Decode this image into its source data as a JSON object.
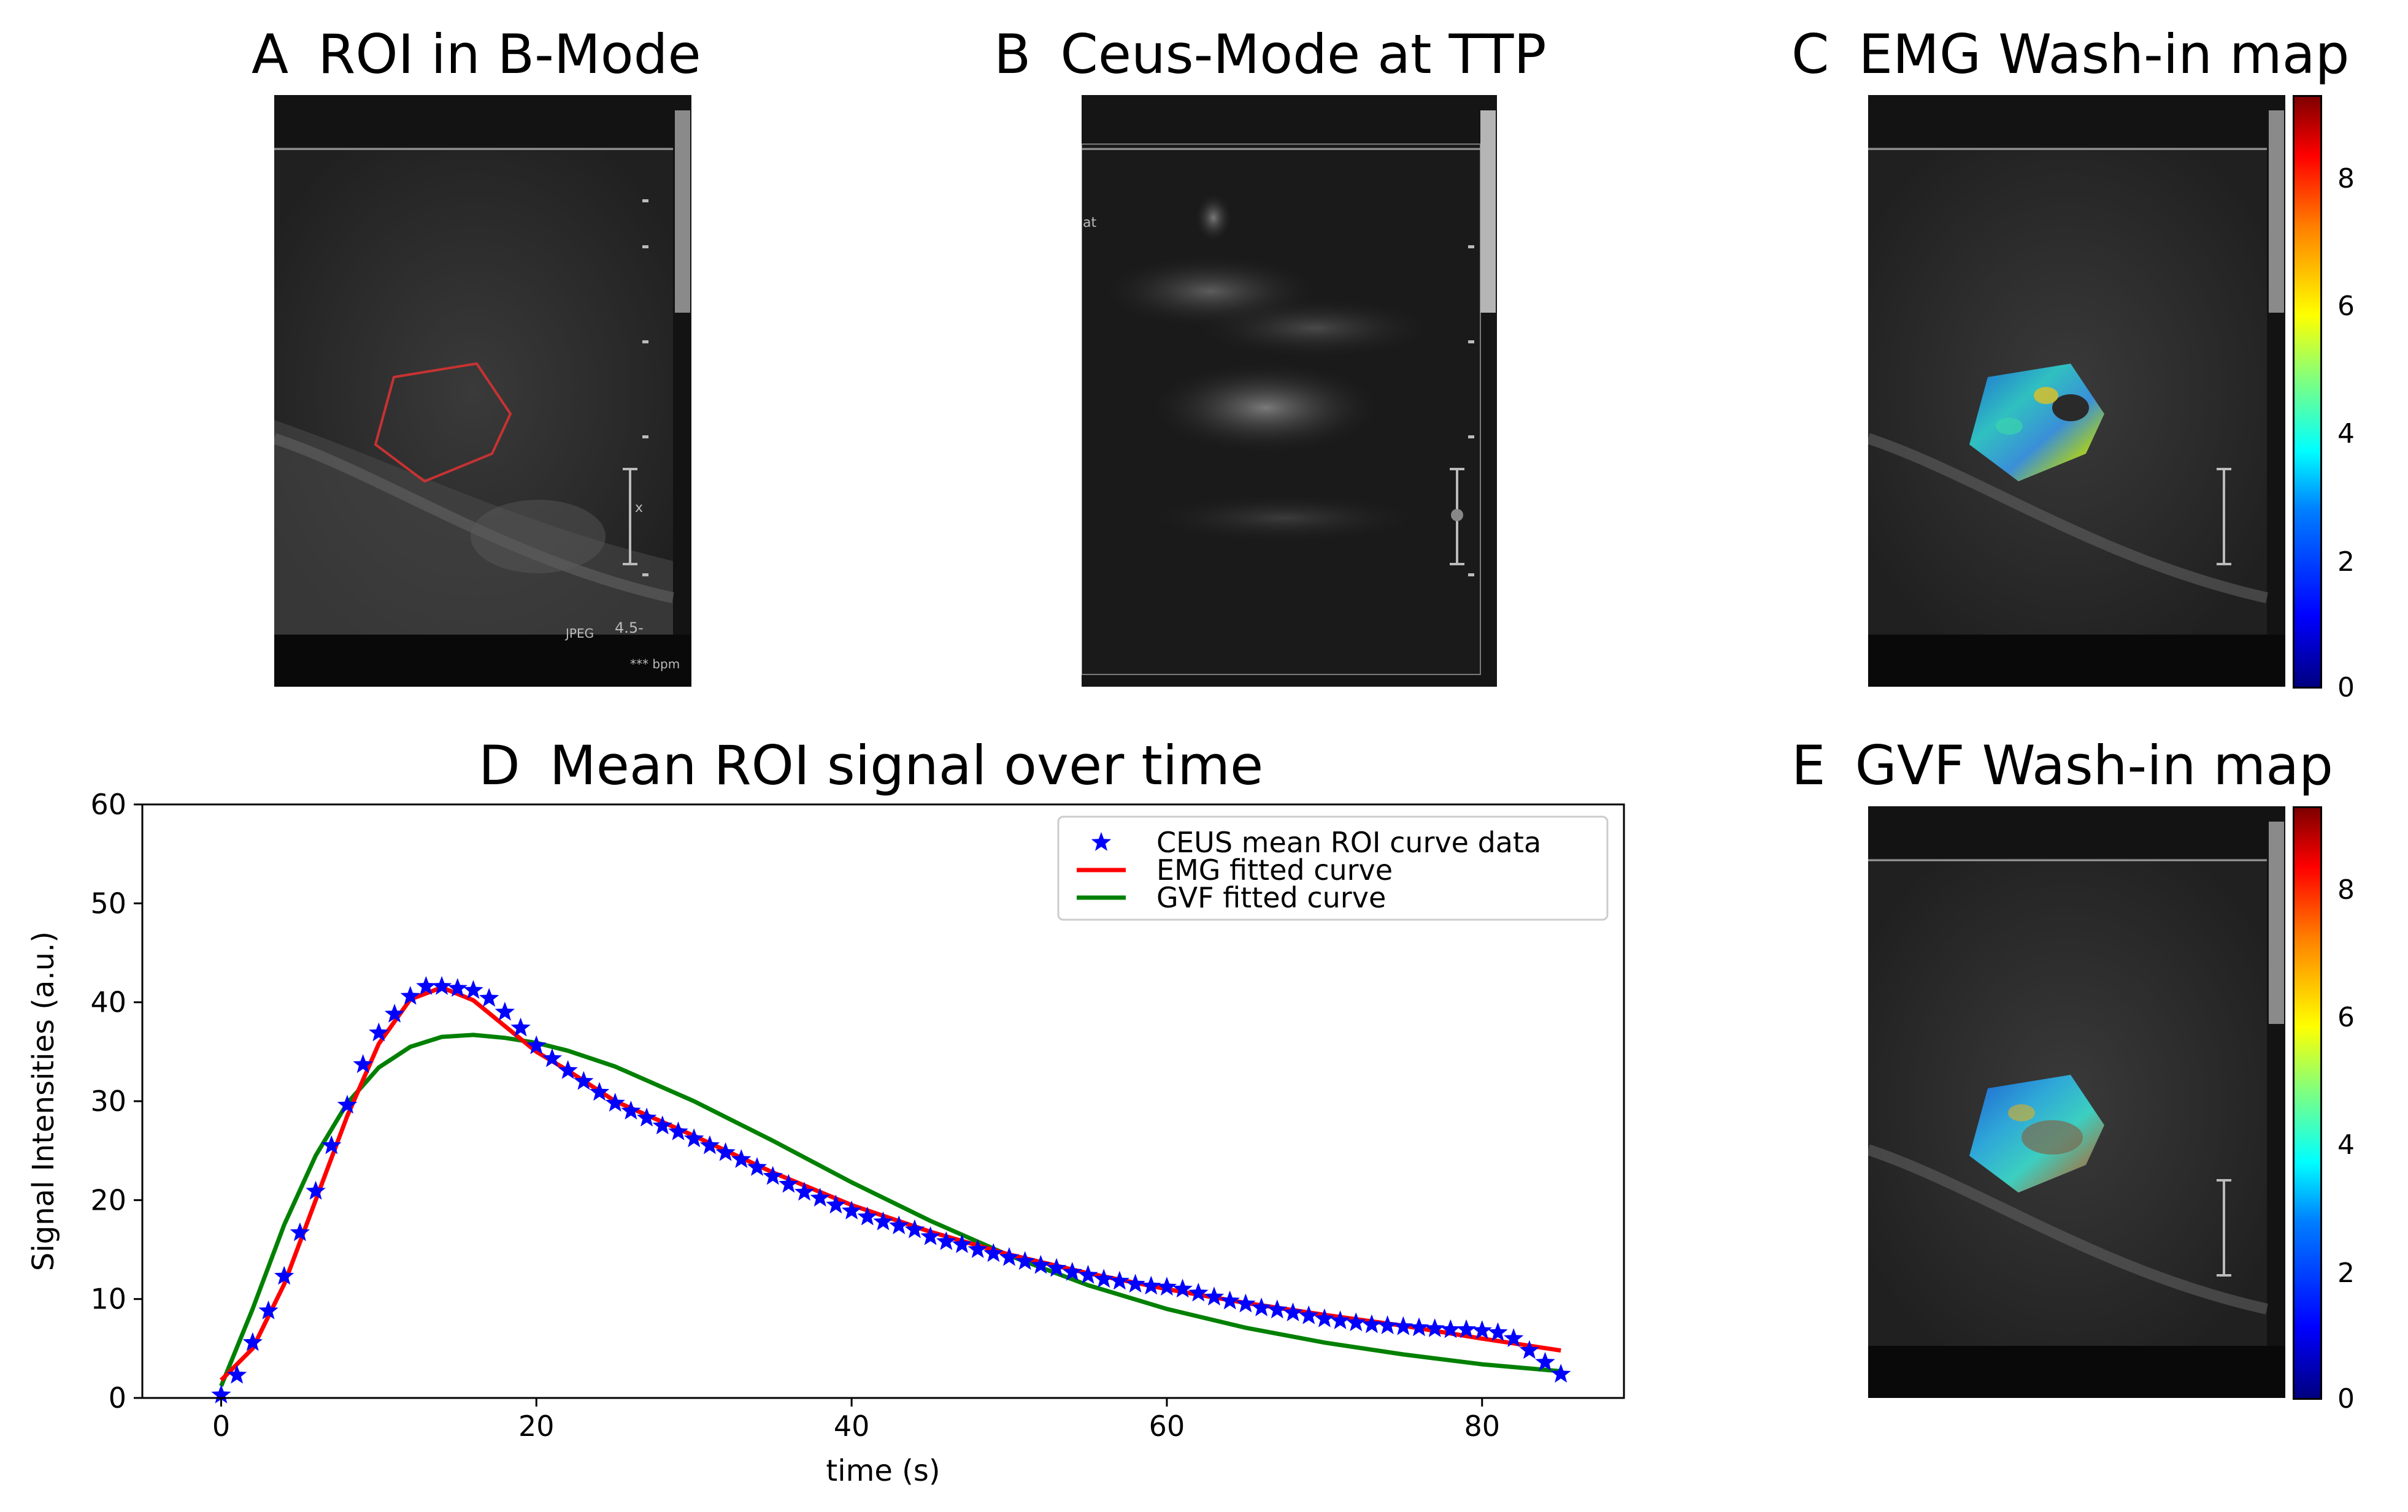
{
  "panels": {
    "a": {
      "letter": "A",
      "title": "ROI in B-Mode"
    },
    "b": {
      "letter": "B",
      "title": "Ceus-Mode at TTP"
    },
    "c": {
      "letter": "C",
      "title": "EMG Wash-in map"
    },
    "d": {
      "letter": "D",
      "title": "Mean ROI signal over time"
    },
    "e": {
      "letter": "E",
      "title": "GVF Wash-in map"
    }
  },
  "overlay_text": {
    "jpeg": "JPEG",
    "depth": "4.5-",
    "bpm": "*** bpm",
    "marker_x": "x",
    "ceus_tag": "at"
  },
  "colors": {
    "data_markers": "#0000ff",
    "emg_curve": "#ff0000",
    "gvf_curve": "#008000",
    "roi_outline": "#c83232"
  },
  "colorbars": {
    "range": [
      0,
      9.2
    ],
    "ticks": [
      "0",
      "2",
      "4",
      "6",
      "8"
    ],
    "colormap": "jet"
  },
  "chart_data": {
    "type": "line",
    "title": "Mean ROI signal over time",
    "xlabel": "time (s)",
    "ylabel": "Signal Intensities (a.u.)",
    "xlim": [
      -5,
      89
    ],
    "ylim": [
      0,
      60
    ],
    "xticks": [
      0,
      20,
      40,
      60,
      80
    ],
    "yticks": [
      0,
      10,
      20,
      30,
      40,
      50,
      60
    ],
    "grid": false,
    "legend_position": "top-right",
    "series": [
      {
        "name": "CEUS mean ROI curve data",
        "style": "star-markers",
        "color": "#0000ff",
        "x": [
          0,
          1,
          2,
          3,
          4,
          5,
          6,
          7,
          8,
          9,
          10,
          11,
          12,
          13,
          14,
          15,
          16,
          17,
          18,
          19,
          20,
          21,
          22,
          23,
          24,
          25,
          26,
          27,
          28,
          29,
          30,
          31,
          32,
          33,
          34,
          35,
          36,
          37,
          38,
          39,
          40,
          41,
          42,
          43,
          44,
          45,
          46,
          47,
          48,
          49,
          50,
          51,
          52,
          53,
          54,
          55,
          56,
          57,
          58,
          59,
          60,
          61,
          62,
          63,
          64,
          65,
          66,
          67,
          68,
          69,
          70,
          71,
          72,
          73,
          74,
          75,
          76,
          77,
          78,
          79,
          80,
          81,
          82,
          83,
          84,
          85
        ],
        "y": [
          0.3,
          2.3,
          5.6,
          8.8,
          12.3,
          16.7,
          20.9,
          25.5,
          29.6,
          33.7,
          36.9,
          38.8,
          40.6,
          41.6,
          41.6,
          41.4,
          41.2,
          40.4,
          39.0,
          37.4,
          35.6,
          34.3,
          33.1,
          32.0,
          30.9,
          29.8,
          29.0,
          28.3,
          27.5,
          26.9,
          26.2,
          25.5,
          24.8,
          24.1,
          23.3,
          22.4,
          21.6,
          20.8,
          20.2,
          19.5,
          18.9,
          18.3,
          17.8,
          17.4,
          17.0,
          16.3,
          15.8,
          15.5,
          15.0,
          14.6,
          14.2,
          13.8,
          13.4,
          13.1,
          12.7,
          12.4,
          12.0,
          11.8,
          11.5,
          11.3,
          11.2,
          11.0,
          10.6,
          10.2,
          9.8,
          9.5,
          9.1,
          8.9,
          8.6,
          8.3,
          8.0,
          7.8,
          7.6,
          7.4,
          7.3,
          7.2,
          7.1,
          7.0,
          6.9,
          6.9,
          6.8,
          6.6,
          6.0,
          4.8,
          3.6,
          2.4
        ]
      },
      {
        "name": "EMG fitted curve",
        "style": "line",
        "color": "#ff0000",
        "x": [
          0,
          2,
          4,
          6,
          8,
          10,
          12,
          14,
          16,
          18,
          20,
          22,
          25,
          30,
          35,
          40,
          45,
          50,
          55,
          60,
          65,
          70,
          75,
          80,
          85
        ],
        "y": [
          1.8,
          5.0,
          11.5,
          20.0,
          28.5,
          35.8,
          40.3,
          41.5,
          40.2,
          37.6,
          35.0,
          33.1,
          30.0,
          26.5,
          22.8,
          19.5,
          16.8,
          14.5,
          12.6,
          11.0,
          9.6,
          8.4,
          7.3,
          6.0,
          4.8
        ]
      },
      {
        "name": "GVF fitted curve",
        "style": "line",
        "color": "#008000",
        "x": [
          0,
          2,
          4,
          6,
          8,
          10,
          12,
          14,
          16,
          18,
          20,
          22,
          25,
          30,
          35,
          40,
          45,
          50,
          55,
          60,
          65,
          70,
          75,
          80,
          85
        ],
        "y": [
          1.2,
          9.0,
          17.5,
          24.5,
          29.8,
          33.4,
          35.5,
          36.5,
          36.7,
          36.4,
          35.9,
          35.1,
          33.5,
          30.0,
          26.0,
          21.8,
          17.9,
          14.4,
          11.4,
          9.0,
          7.1,
          5.6,
          4.4,
          3.4,
          2.7
        ]
      }
    ]
  }
}
